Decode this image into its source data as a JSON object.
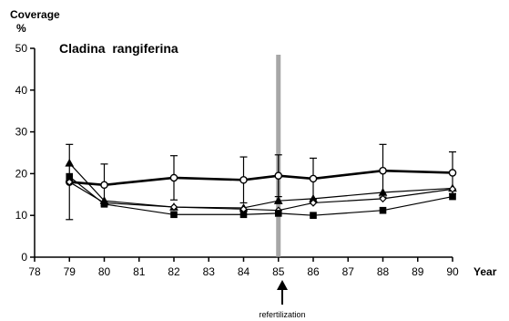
{
  "chart_data": {
    "type": "line",
    "title": "Cladina  rangiferina",
    "ylabel": "Coverage",
    "yunit": "%",
    "xlabel": "Year",
    "xlim": [
      78,
      90
    ],
    "ylim": [
      0,
      50
    ],
    "xticks": [
      "78",
      "79",
      "80",
      "81",
      "82",
      "83",
      "84",
      "85",
      "86",
      "87",
      "88",
      "89",
      "90"
    ],
    "yticks": [
      "0",
      "10",
      "20",
      "30",
      "40",
      "50"
    ],
    "grid": false,
    "series": [
      {
        "marker": "open-circle",
        "line_weight": "bold",
        "x": [
          79,
          80,
          82,
          84,
          85,
          86,
          88,
          90
        ],
        "y": [
          18,
          17.3,
          19,
          18.5,
          19.5,
          18.8,
          20.7,
          20.2
        ],
        "error": [
          9,
          5,
          5.3,
          5.5,
          5,
          4.9,
          6.3,
          5
        ]
      },
      {
        "marker": "triangle",
        "x": [
          79,
          80,
          82,
          84,
          85,
          86,
          88,
          90
        ],
        "y": [
          22.5,
          13.5,
          12,
          11.8,
          13.5,
          14,
          15.5,
          16.5
        ]
      },
      {
        "marker": "open-diamond",
        "x": [
          79,
          80,
          82,
          84,
          85,
          86,
          88,
          90
        ],
        "y": [
          18,
          13,
          12,
          11.5,
          11.2,
          13,
          14,
          16.3
        ]
      },
      {
        "marker": "square",
        "x": [
          79,
          80,
          82,
          84,
          85,
          86,
          88,
          90
        ],
        "y": [
          19.3,
          12.7,
          10.2,
          10.2,
          10.5,
          10,
          11.2,
          14.5
        ]
      }
    ],
    "annotation": {
      "text": "refertilization",
      "x": 85,
      "shading": "vertical band at x = 85"
    }
  }
}
